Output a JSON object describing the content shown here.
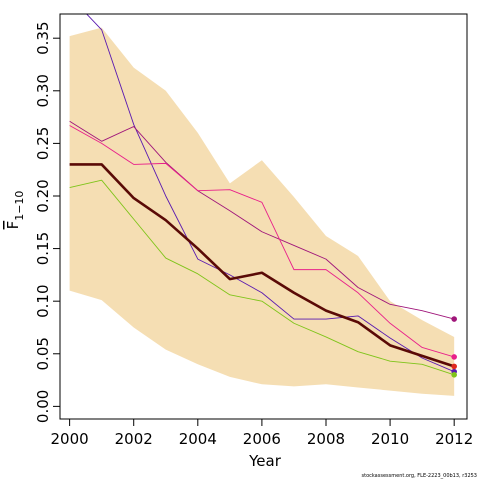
{
  "chart_data": {
    "type": "line",
    "xlabel": "Year",
    "ylabel": "F",
    "ylabel_subscript": "1−10",
    "xlim": [
      1999.7,
      2012.4
    ],
    "ylim": [
      -0.012,
      0.373
    ],
    "x_ticks": [
      2000,
      2002,
      2004,
      2006,
      2008,
      2010,
      2012
    ],
    "x_tick_labels": [
      "2000",
      "2002",
      "2004",
      "2006",
      "2008",
      "2010",
      "2012"
    ],
    "y_ticks": [
      0.0,
      0.05,
      0.1,
      0.15,
      0.2,
      0.25,
      0.3,
      0.35
    ],
    "y_tick_labels": [
      "0.00",
      "0.05",
      "0.10",
      "0.15",
      "0.20",
      "0.25",
      "0.30",
      "0.35"
    ],
    "grid": false,
    "legend": "none",
    "confidence_band": {
      "color": "#f5deb3",
      "x": [
        2000,
        2001,
        2002,
        2003,
        2004,
        2005,
        2006,
        2007,
        2008,
        2009,
        2010,
        2011,
        2012
      ],
      "upper": [
        0.352,
        0.36,
        0.322,
        0.3,
        0.26,
        0.212,
        0.234,
        0.199,
        0.162,
        0.143,
        0.1,
        0.082,
        0.066
      ],
      "lower": [
        0.11,
        0.101,
        0.075,
        0.054,
        0.04,
        0.028,
        0.021,
        0.019,
        0.021,
        0.018,
        0.015,
        0.012,
        0.01
      ]
    },
    "series": [
      {
        "color": "#5a1ab0",
        "width": 0.9,
        "end_marker": true,
        "x": [
          2000,
          2001,
          2002,
          2003,
          2004,
          2005,
          2006,
          2007,
          2008,
          2009,
          2010,
          2011,
          2012
        ],
        "values": [
          0.39,
          0.358,
          0.268,
          0.2,
          0.14,
          0.125,
          0.108,
          0.083,
          0.083,
          0.086,
          0.065,
          0.046,
          0.033
        ]
      },
      {
        "color": "#a0167a",
        "width": 0.9,
        "end_marker": true,
        "x": [
          2000,
          2001,
          2002,
          2003,
          2004,
          2005,
          2006,
          2007,
          2008,
          2009,
          2010,
          2011,
          2012
        ],
        "values": [
          0.271,
          0.252,
          0.266,
          0.232,
          0.205,
          0.186,
          0.166,
          0.153,
          0.14,
          0.113,
          0.097,
          0.091,
          0.083
        ]
      },
      {
        "color": "#e8208a",
        "width": 0.9,
        "end_marker": true,
        "x": [
          2000,
          2001,
          2002,
          2003,
          2004,
          2005,
          2006,
          2007,
          2008,
          2009,
          2010,
          2011,
          2012
        ],
        "values": [
          0.267,
          0.25,
          0.23,
          0.231,
          0.205,
          0.206,
          0.194,
          0.13,
          0.13,
          0.108,
          0.079,
          0.056,
          0.047
        ]
      },
      {
        "color": "#7fc41a",
        "width": 0.9,
        "end_marker": true,
        "x": [
          2000,
          2001,
          2002,
          2003,
          2004,
          2005,
          2006,
          2007,
          2008,
          2009,
          2010,
          2011,
          2012
        ],
        "values": [
          0.208,
          0.215,
          0.178,
          0.141,
          0.126,
          0.106,
          0.1,
          0.079,
          0.066,
          0.052,
          0.043,
          0.04,
          0.03
        ]
      },
      {
        "color": "#5a0a06",
        "width": 2.6,
        "end_marker": true,
        "end_marker_color": "#e0281e",
        "x": [
          2000,
          2001,
          2002,
          2003,
          2004,
          2005,
          2006,
          2007,
          2008,
          2009,
          2010,
          2011,
          2012
        ],
        "values": [
          0.23,
          0.23,
          0.198,
          0.177,
          0.15,
          0.121,
          0.127,
          0.108,
          0.091,
          0.08,
          0.058,
          0.048,
          0.038
        ]
      }
    ],
    "footnote": "stockassessment.org, FLE-2223_00b13, r3253"
  }
}
